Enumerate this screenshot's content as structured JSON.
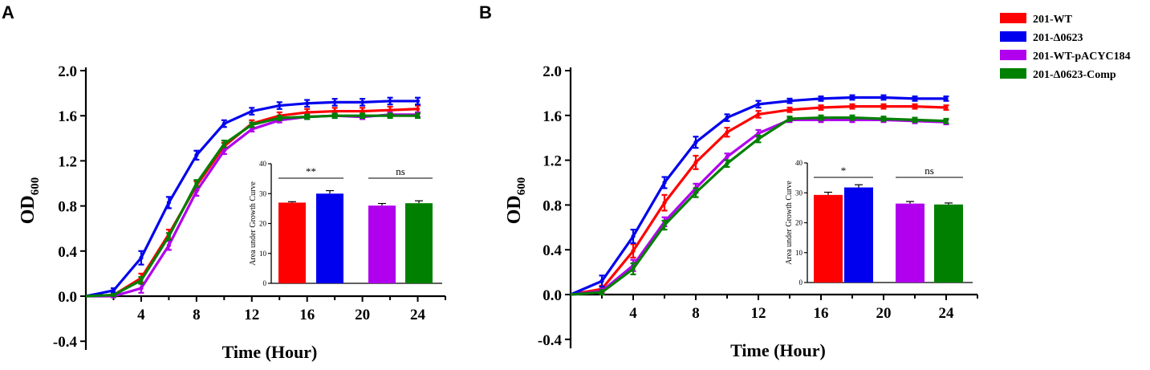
{
  "legend": [
    {
      "label": "201-WT",
      "color": "#ff0000"
    },
    {
      "label": "201-Δ0623",
      "color": "#0000ee"
    },
    {
      "label": "201-WT-pACYC184",
      "color": "#b000ee"
    },
    {
      "label": "201-Δ0623-Comp",
      "color": "#008000"
    }
  ],
  "chart_data": [
    {
      "panel": "A",
      "type": "line",
      "xlabel": "Time (Hour)",
      "ylabel_main": "OD",
      "ylabel_sub": "600",
      "xlim": [
        0,
        26
      ],
      "ylim": [
        -0.4,
        2.0
      ],
      "xticks": [
        4,
        8,
        12,
        16,
        20,
        24
      ],
      "yticks": [
        -0.4,
        0.0,
        0.4,
        0.8,
        1.2,
        1.6,
        2.0
      ],
      "ytick_labels": [
        "-0.4",
        "0.0",
        "0.4",
        "0.8",
        "1.2",
        "1.6",
        "2.0"
      ],
      "x": [
        0,
        2,
        4,
        6,
        8,
        10,
        12,
        14,
        16,
        18,
        20,
        22,
        24
      ],
      "series": [
        {
          "name": "201-WT",
          "color": "#ff0000",
          "values": [
            0.0,
            0.01,
            0.16,
            0.55,
            0.98,
            1.33,
            1.53,
            1.6,
            1.63,
            1.64,
            1.64,
            1.65,
            1.66
          ],
          "err": [
            0,
            0.01,
            0.04,
            0.04,
            0.04,
            0.03,
            0.03,
            0.03,
            0.03,
            0.03,
            0.03,
            0.03,
            0.03
          ]
        },
        {
          "name": "201-Δ0623",
          "color": "#0000ee",
          "values": [
            0.0,
            0.05,
            0.34,
            0.83,
            1.25,
            1.53,
            1.64,
            1.69,
            1.71,
            1.72,
            1.72,
            1.73,
            1.73
          ],
          "err": [
            0,
            0.02,
            0.06,
            0.05,
            0.04,
            0.03,
            0.03,
            0.03,
            0.03,
            0.03,
            0.03,
            0.03,
            0.03
          ]
        },
        {
          "name": "201-WT-pACYC184",
          "color": "#b000ee",
          "values": [
            0.0,
            0.0,
            0.07,
            0.45,
            0.93,
            1.29,
            1.48,
            1.56,
            1.59,
            1.6,
            1.59,
            1.61,
            1.61
          ],
          "err": [
            0,
            0.01,
            0.04,
            0.04,
            0.04,
            0.03,
            0.02,
            0.02,
            0.02,
            0.02,
            0.02,
            0.02,
            0.02
          ]
        },
        {
          "name": "201-Δ0623-Comp",
          "color": "#008000",
          "values": [
            0.0,
            0.01,
            0.14,
            0.53,
            1.0,
            1.35,
            1.52,
            1.58,
            1.59,
            1.6,
            1.6,
            1.6,
            1.6
          ],
          "err": [
            0,
            0.01,
            0.03,
            0.03,
            0.03,
            0.03,
            0.02,
            0.02,
            0.02,
            0.02,
            0.02,
            0.02,
            0.02
          ]
        }
      ],
      "inset": {
        "type": "bar",
        "ylabel": "Area under Growth  Curve",
        "ylim": [
          0,
          40
        ],
        "yticks": [
          0,
          10,
          20,
          30,
          40
        ],
        "values": [
          27,
          30,
          26,
          26.8
        ],
        "err": [
          0.3,
          1.0,
          0.7,
          0.8
        ],
        "colors": [
          "#ff0000",
          "#0000ee",
          "#b000ee",
          "#008000"
        ],
        "sig": [
          {
            "from": 0,
            "to": 1,
            "label": "**"
          },
          {
            "from": 2,
            "to": 3,
            "label": "ns"
          }
        ]
      }
    },
    {
      "panel": "B",
      "type": "line",
      "xlabel": "Time (Hour)",
      "ylabel_main": "OD",
      "ylabel_sub": "600",
      "xlim": [
        0,
        26
      ],
      "ylim": [
        -0.4,
        2.0
      ],
      "xticks": [
        4,
        8,
        12,
        16,
        20,
        24
      ],
      "yticks": [
        -0.4,
        0.0,
        0.4,
        0.8,
        1.2,
        1.6,
        2.0
      ],
      "ytick_labels": [
        "-0.4",
        "0.0",
        "0.4",
        "0.8",
        "1.2",
        "1.6",
        "2.0"
      ],
      "x": [
        0,
        2,
        4,
        6,
        8,
        10,
        12,
        14,
        16,
        18,
        20,
        22,
        24
      ],
      "series": [
        {
          "name": "201-WT",
          "color": "#ff0000",
          "values": [
            0.0,
            0.05,
            0.39,
            0.82,
            1.18,
            1.45,
            1.61,
            1.65,
            1.67,
            1.68,
            1.68,
            1.68,
            1.67
          ],
          "err": [
            0,
            0.03,
            0.06,
            0.07,
            0.06,
            0.04,
            0.03,
            0.02,
            0.02,
            0.02,
            0.02,
            0.02,
            0.02
          ]
        },
        {
          "name": "201-Δ0623",
          "color": "#0000ee",
          "values": [
            0.0,
            0.12,
            0.52,
            1.0,
            1.36,
            1.58,
            1.7,
            1.73,
            1.75,
            1.76,
            1.76,
            1.75,
            1.75
          ],
          "err": [
            0,
            0.05,
            0.06,
            0.05,
            0.05,
            0.03,
            0.03,
            0.02,
            0.02,
            0.02,
            0.02,
            0.02,
            0.02
          ]
        },
        {
          "name": "201-WT-pACYC184",
          "color": "#b000ee",
          "values": [
            0.0,
            0.03,
            0.26,
            0.65,
            0.95,
            1.23,
            1.44,
            1.56,
            1.56,
            1.56,
            1.56,
            1.55,
            1.54
          ],
          "err": [
            0,
            0.02,
            0.05,
            0.04,
            0.04,
            0.03,
            0.03,
            0.02,
            0.02,
            0.02,
            0.02,
            0.02,
            0.02
          ]
        },
        {
          "name": "201-Δ0623-Comp",
          "color": "#008000",
          "values": [
            0.0,
            0.02,
            0.23,
            0.62,
            0.91,
            1.17,
            1.39,
            1.57,
            1.58,
            1.58,
            1.57,
            1.56,
            1.55
          ],
          "err": [
            0,
            0.02,
            0.05,
            0.04,
            0.04,
            0.03,
            0.03,
            0.02,
            0.02,
            0.02,
            0.02,
            0.02,
            0.02
          ]
        }
      ],
      "inset": {
        "type": "bar",
        "ylabel": "Area under Growth Curve",
        "ylim": [
          0,
          40
        ],
        "yticks": [
          0,
          10,
          20,
          30,
          40
        ],
        "values": [
          29.3,
          31.8,
          26.4,
          26.1
        ],
        "err": [
          0.9,
          0.9,
          0.7,
          0.5
        ],
        "colors": [
          "#ff0000",
          "#0000ee",
          "#b000ee",
          "#008000"
        ],
        "sig": [
          {
            "from": 0,
            "to": 1,
            "label": "*"
          },
          {
            "from": 2,
            "to": 3,
            "label": "ns"
          }
        ]
      }
    }
  ]
}
